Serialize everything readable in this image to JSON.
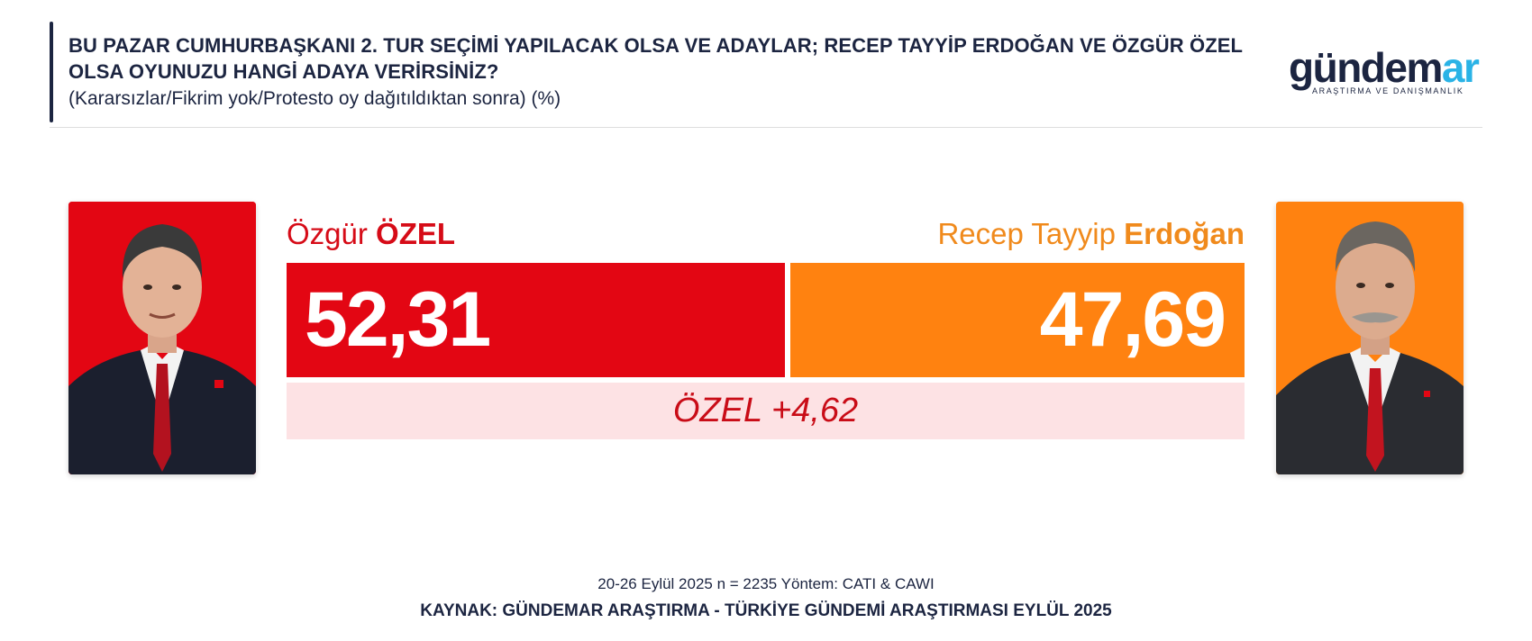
{
  "header": {
    "title": "BU PAZAR CUMHURBAŞKANI 2. TUR SEÇİMİ YAPILACAK OLSA VE ADAYLAR; RECEP TAYYİP ERDOĞAN VE ÖZGÜR ÖZEL OLSA OYUNUZU HANGİ ADAYA VERİRSİNİZ?",
    "subtitle": "(Kararsızlar/Fikrim yok/Protesto oy dağıtıldıktan sonra) (%)"
  },
  "logo": {
    "main": "gündem",
    "accent": "ar",
    "tagline": "ARAŞTIRMA VE DANIŞMANLIK"
  },
  "colors": {
    "ozel": "#e30613",
    "erdogan": "#ff8210",
    "lead_bg": "#fde2e4",
    "navy": "#1c2541"
  },
  "chart_data": {
    "type": "bar",
    "orientation": "horizontal-stacked",
    "series": [
      {
        "first": "Özgür",
        "last": "ÖZEL",
        "value": 52.31,
        "value_label": "52,31",
        "color": "#e30613"
      },
      {
        "first": "Recep Tayyip",
        "last": "Erdoğan",
        "value": 47.69,
        "value_label": "47,69",
        "color": "#ff8210"
      }
    ],
    "lead_label": "ÖZEL +4,62",
    "lead_value": 4.62,
    "total": 100
  },
  "footer": {
    "meta": "20-26 Eylül 2025 n = 2235 Yöntem: CATI & CAWI",
    "source": "KAYNAK: GÜNDEMAR ARAŞTIRMA - TÜRKİYE GÜNDEMİ ARAŞTIRMASI EYLÜL 2025"
  }
}
